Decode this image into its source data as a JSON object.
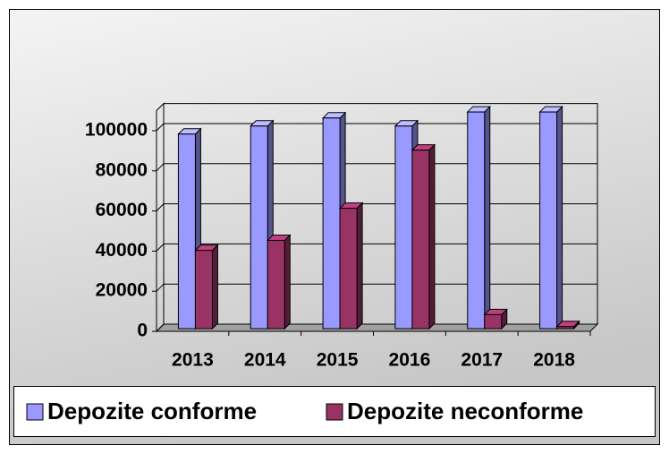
{
  "chart_data": {
    "type": "bar3d",
    "categories": [
      "2013",
      "2014",
      "2015",
      "2016",
      "2017",
      "2018"
    ],
    "series": [
      {
        "name": "Depozite conforme",
        "color": "#9999ff",
        "values": [
          97000,
          101000,
          105000,
          101000,
          108000,
          108000
        ]
      },
      {
        "name": "Depozite neconforme",
        "color": "#993366",
        "values": [
          39000,
          44000,
          60000,
          89000,
          7000,
          1000
        ]
      }
    ],
    "ylim": [
      0,
      110000
    ],
    "yticks": [
      0,
      20000,
      40000,
      60000,
      80000,
      100000
    ],
    "grid": true,
    "legend": "bottom"
  }
}
